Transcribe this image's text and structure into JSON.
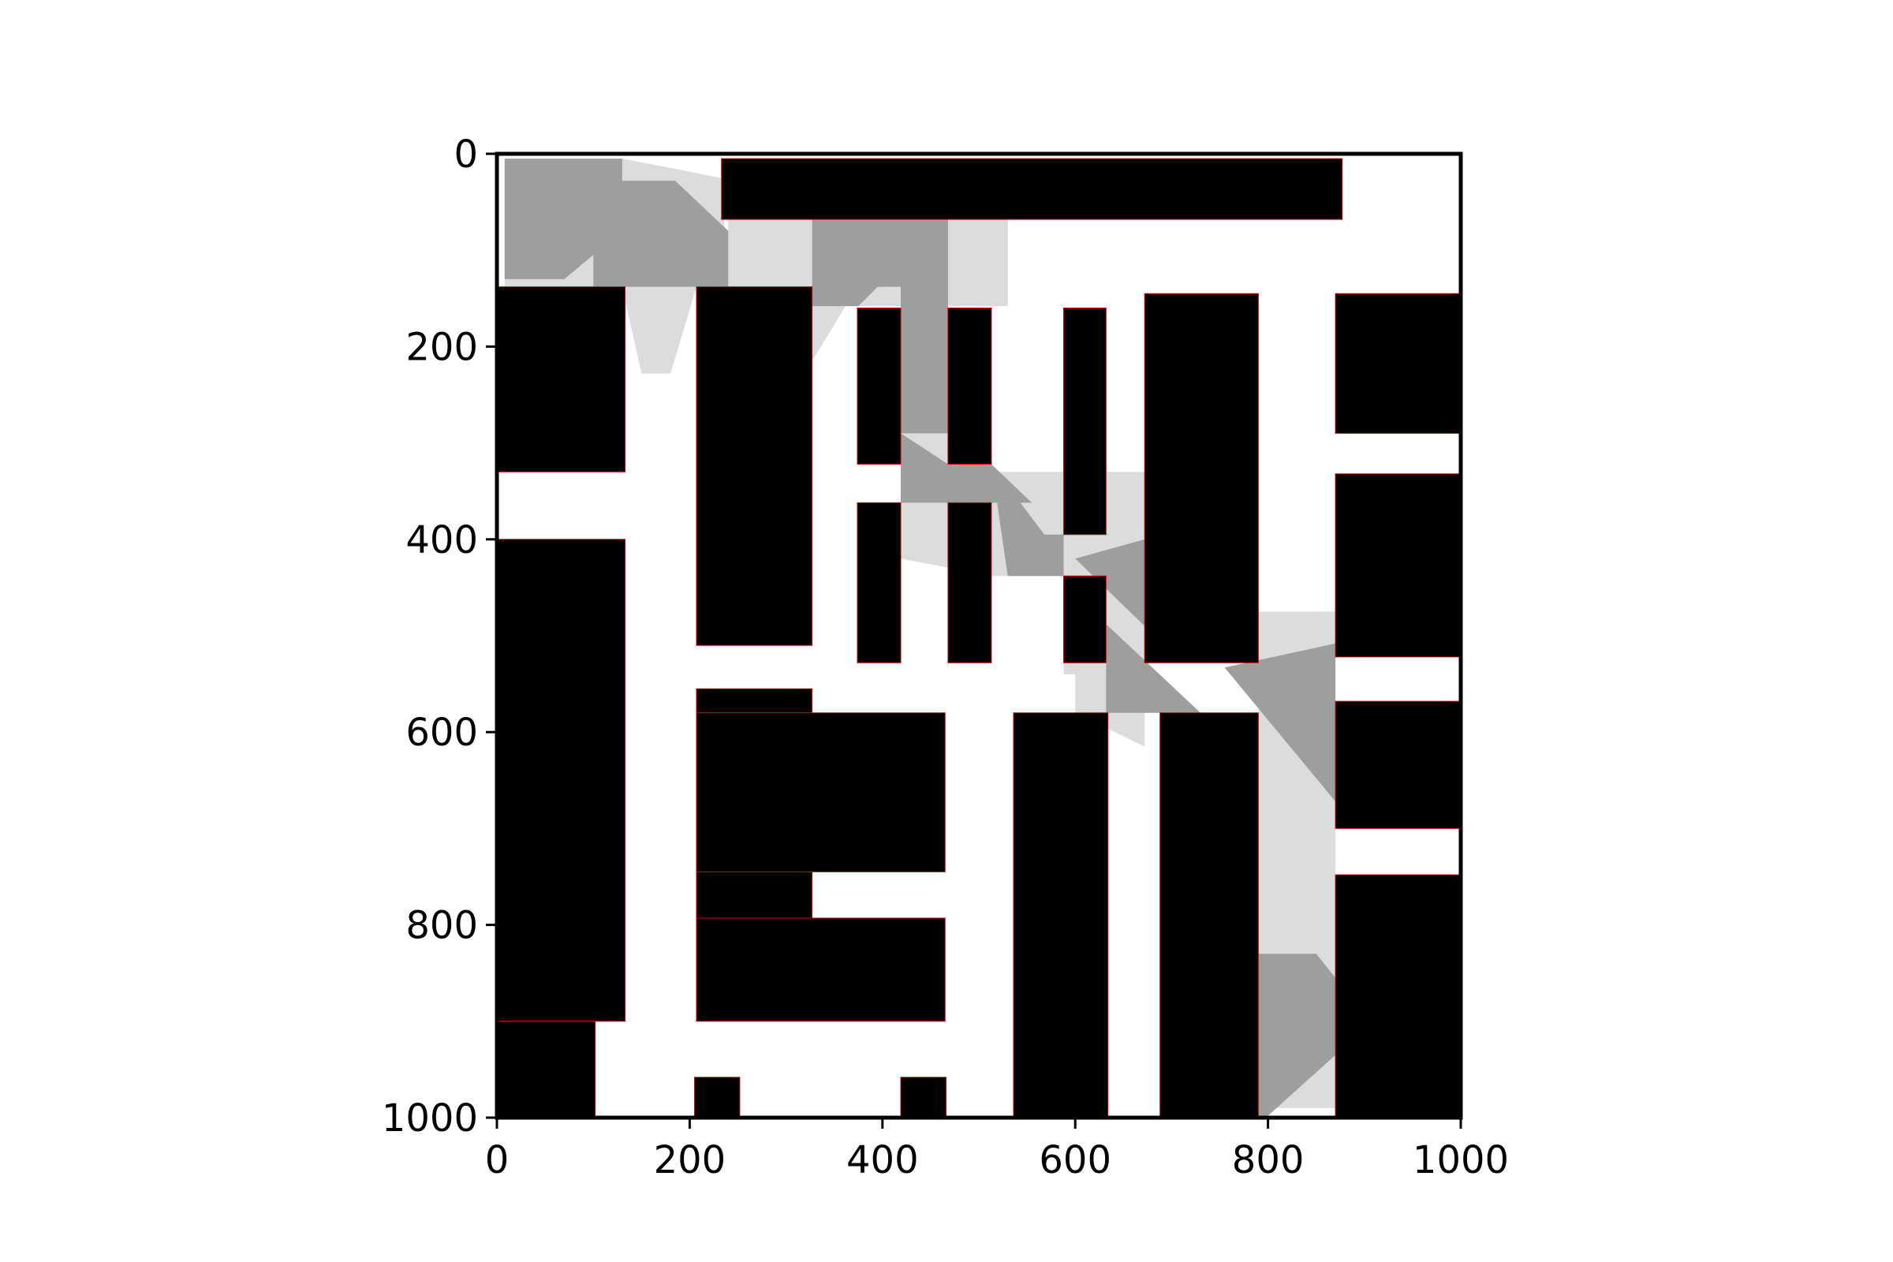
{
  "chart_data": {
    "type": "map",
    "title": "",
    "xlabel": "",
    "ylabel": "",
    "xlim": [
      0,
      1000
    ],
    "ylim": [
      1000,
      0
    ],
    "y_inverted": true,
    "grid": false,
    "legend": "none",
    "x_ticks": [
      0,
      200,
      400,
      600,
      800,
      1000
    ],
    "y_ticks": [
      0,
      200,
      400,
      600,
      800,
      1000
    ],
    "x_tick_labels": [
      "0",
      "200",
      "400",
      "600",
      "800",
      "1000"
    ],
    "y_tick_labels": [
      "0",
      "200",
      "400",
      "600",
      "800",
      "1000"
    ],
    "colors": {
      "background": "#ffffff",
      "obstacle": "#000000",
      "obstacle_edge": "#cc0000",
      "region_light": "#dcdcdc",
      "region_dark": "#9e9e9e",
      "axes": "#000000"
    },
    "obstacles": [
      [
        [
          233,
          5
        ],
        [
          877,
          5
        ],
        [
          877,
          68
        ],
        [
          233,
          68
        ]
      ],
      [
        [
          0,
          138
        ],
        [
          133,
          138
        ],
        [
          133,
          330
        ],
        [
          0,
          330
        ]
      ],
      [
        [
          0,
          400
        ],
        [
          133,
          400
        ],
        [
          133,
          900
        ],
        [
          0,
          900
        ]
      ],
      [
        [
          0,
          900
        ],
        [
          102,
          900
        ],
        [
          102,
          1000
        ],
        [
          0,
          1000
        ]
      ],
      [
        [
          207,
          138
        ],
        [
          327,
          138
        ],
        [
          327,
          510
        ],
        [
          207,
          510
        ]
      ],
      [
        [
          374,
          160
        ],
        [
          419,
          160
        ],
        [
          419,
          322
        ],
        [
          374,
          322
        ]
      ],
      [
        [
          468,
          160
        ],
        [
          513,
          160
        ],
        [
          513,
          322
        ],
        [
          468,
          322
        ]
      ],
      [
        [
          374,
          362
        ],
        [
          419,
          362
        ],
        [
          419,
          528
        ],
        [
          374,
          528
        ]
      ],
      [
        [
          468,
          362
        ],
        [
          513,
          362
        ],
        [
          513,
          528
        ],
        [
          468,
          528
        ]
      ],
      [
        [
          588,
          160
        ],
        [
          632,
          160
        ],
        [
          632,
          395
        ],
        [
          588,
          395
        ]
      ],
      [
        [
          588,
          438
        ],
        [
          632,
          438
        ],
        [
          632,
          528
        ],
        [
          588,
          528
        ]
      ],
      [
        [
          672,
          145
        ],
        [
          790,
          145
        ],
        [
          790,
          528
        ],
        [
          672,
          528
        ]
      ],
      [
        [
          870,
          145
        ],
        [
          1000,
          145
        ],
        [
          1000,
          290
        ],
        [
          870,
          290
        ]
      ],
      [
        [
          870,
          332
        ],
        [
          1000,
          332
        ],
        [
          1000,
          522
        ],
        [
          870,
          522
        ]
      ],
      [
        [
          870,
          568
        ],
        [
          1000,
          568
        ],
        [
          1000,
          700
        ],
        [
          870,
          700
        ]
      ],
      [
        [
          870,
          748
        ],
        [
          1000,
          748
        ],
        [
          1000,
          1000
        ],
        [
          870,
          1000
        ]
      ],
      [
        [
          207,
          555
        ],
        [
          327,
          555
        ],
        [
          327,
          580
        ],
        [
          207,
          580
        ]
      ],
      [
        [
          207,
          580
        ],
        [
          465,
          580
        ],
        [
          465,
          745
        ],
        [
          207,
          745
        ]
      ],
      [
        [
          207,
          745
        ],
        [
          327,
          745
        ],
        [
          327,
          793
        ],
        [
          207,
          793
        ]
      ],
      [
        [
          207,
          793
        ],
        [
          465,
          793
        ],
        [
          465,
          900
        ],
        [
          207,
          900
        ]
      ],
      [
        [
          205,
          958
        ],
        [
          252,
          958
        ],
        [
          252,
          1000
        ],
        [
          205,
          1000
        ]
      ],
      [
        [
          419,
          958
        ],
        [
          466,
          958
        ],
        [
          466,
          1000
        ],
        [
          419,
          1000
        ]
      ],
      [
        [
          536,
          580
        ],
        [
          634,
          580
        ],
        [
          634,
          1000
        ],
        [
          536,
          1000
        ]
      ],
      [
        [
          688,
          580
        ],
        [
          790,
          580
        ],
        [
          790,
          1000
        ],
        [
          688,
          1000
        ]
      ]
    ],
    "regions_light": [
      [
        [
          8,
          5
        ],
        [
          130,
          5
        ],
        [
          233,
          25
        ],
        [
          240,
          138
        ],
        [
          8,
          138
        ]
      ],
      [
        [
          130,
          138
        ],
        [
          207,
          138
        ],
        [
          180,
          228
        ],
        [
          150,
          228
        ]
      ],
      [
        [
          240,
          68
        ],
        [
          530,
          68
        ],
        [
          530,
          158
        ],
        [
          327,
          158
        ],
        [
          240,
          138
        ]
      ],
      [
        [
          327,
          138
        ],
        [
          374,
          138
        ],
        [
          327,
          215
        ]
      ],
      [
        [
          419,
          290
        ],
        [
          468,
          290
        ],
        [
          468,
          330
        ],
        [
          672,
          330
        ],
        [
          672,
          540
        ],
        [
          588,
          540
        ],
        [
          588,
          438
        ],
        [
          513,
          438
        ],
        [
          419,
          420
        ]
      ],
      [
        [
          600,
          540
        ],
        [
          672,
          540
        ],
        [
          672,
          615
        ],
        [
          600,
          580
        ]
      ],
      [
        [
          790,
          475
        ],
        [
          870,
          475
        ],
        [
          870,
          990
        ],
        [
          790,
          990
        ]
      ]
    ],
    "regions_dark": [
      [
        [
          8,
          5
        ],
        [
          130,
          5
        ],
        [
          130,
          28
        ],
        [
          185,
          28
        ],
        [
          240,
          80
        ],
        [
          240,
          138
        ],
        [
          100,
          138
        ],
        [
          100,
          105
        ],
        [
          70,
          130
        ],
        [
          8,
          130
        ]
      ],
      [
        [
          327,
          68
        ],
        [
          468,
          68
        ],
        [
          468,
          290
        ],
        [
          419,
          290
        ],
        [
          419,
          138
        ],
        [
          395,
          138
        ],
        [
          375,
          158
        ],
        [
          327,
          158
        ]
      ],
      [
        [
          419,
          290
        ],
        [
          468,
          322
        ],
        [
          513,
          322
        ],
        [
          555,
          362
        ],
        [
          419,
          362
        ]
      ],
      [
        [
          513,
          322
        ],
        [
          568,
          395
        ],
        [
          588,
          395
        ],
        [
          588,
          438
        ],
        [
          530,
          438
        ]
      ],
      [
        [
          600,
          420
        ],
        [
          672,
          400
        ],
        [
          672,
          490
        ]
      ],
      [
        [
          632,
          488
        ],
        [
          730,
          580
        ],
        [
          632,
          580
        ]
      ],
      [
        [
          755,
          533
        ],
        [
          870,
          508
        ],
        [
          870,
          672
        ]
      ],
      [
        [
          790,
          830
        ],
        [
          850,
          830
        ],
        [
          870,
          855
        ],
        [
          870,
          935
        ],
        [
          800,
          998
        ],
        [
          790,
          998
        ]
      ]
    ]
  }
}
